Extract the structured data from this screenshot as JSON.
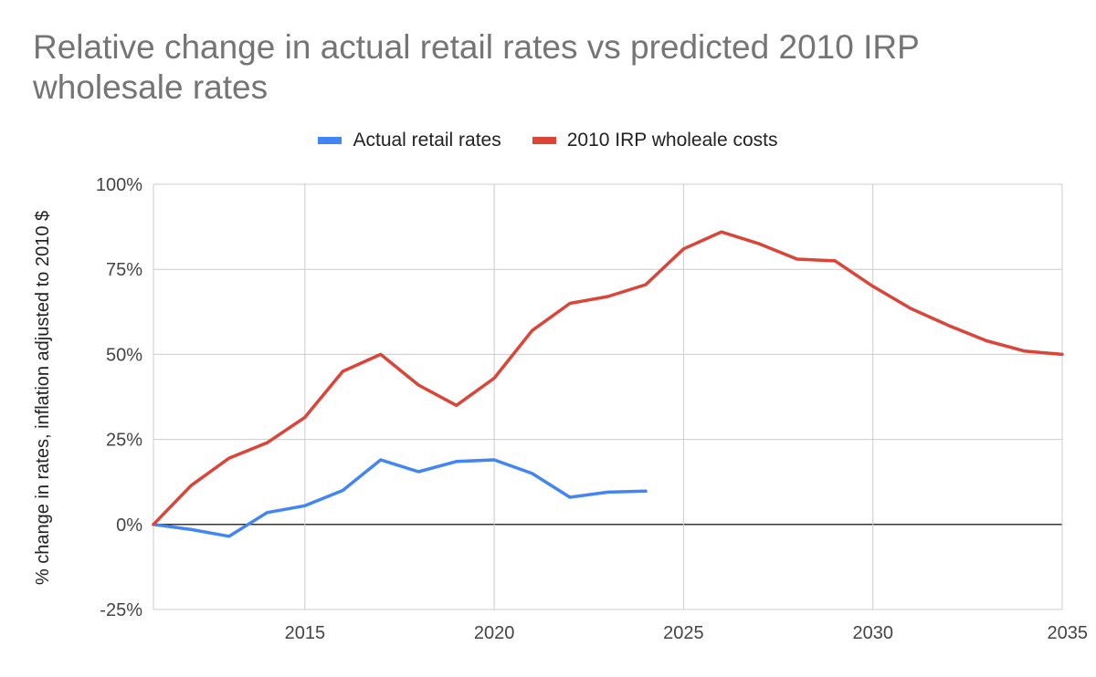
{
  "chart_data": {
    "type": "line",
    "title": "Relative change in actual retail rates vs predicted 2010 IRP wholesale rates",
    "xlabel": "",
    "ylabel": "% change in rates, inflation adjusted to 2010 $",
    "xlim": [
      2011,
      2035
    ],
    "ylim": [
      -25,
      100
    ],
    "x_ticks": [
      2015,
      2020,
      2025,
      2030,
      2035
    ],
    "y_ticks": [
      -25,
      0,
      25,
      50,
      75,
      100
    ],
    "y_tick_labels": [
      "-25%",
      "0%",
      "25%",
      "50%",
      "75%",
      "100%"
    ],
    "x_tick_labels": [
      "2015",
      "2020",
      "2025",
      "2030",
      "2035"
    ],
    "grid": true,
    "legend_position": "top-center",
    "series": [
      {
        "name": "Actual retail rates",
        "color": "#4285F4",
        "x": [
          2011,
          2012,
          2013,
          2014,
          2015,
          2016,
          2017,
          2018,
          2019,
          2020,
          2021,
          2022,
          2023,
          2024
        ],
        "values": [
          0,
          -1.5,
          -3.5,
          3.5,
          5.5,
          10,
          19,
          15.5,
          18.5,
          19,
          15,
          8,
          9.5,
          9.8
        ]
      },
      {
        "name": "2010 IRP wholeale costs",
        "color": "#DB4437",
        "x": [
          2011,
          2012,
          2013,
          2014,
          2015,
          2016,
          2017,
          2018,
          2019,
          2020,
          2021,
          2022,
          2023,
          2024,
          2025,
          2026,
          2027,
          2028,
          2029,
          2030,
          2031,
          2032,
          2033,
          2034,
          2035
        ],
        "values": [
          0,
          11.5,
          19.5,
          24,
          31.5,
          45,
          50,
          41,
          35,
          43,
          57,
          65,
          67,
          70.5,
          81,
          86,
          82.5,
          78,
          77.5,
          70,
          63.5,
          58.5,
          54,
          51,
          50
        ]
      }
    ]
  }
}
